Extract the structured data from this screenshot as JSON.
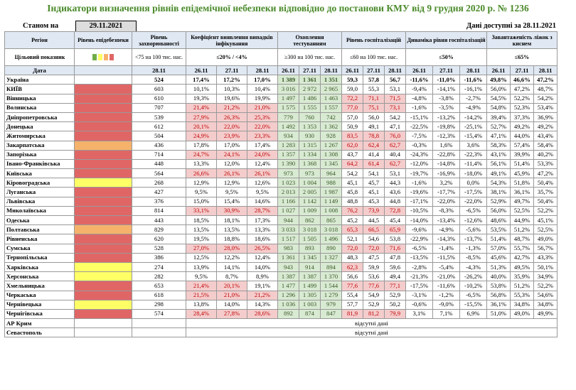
{
  "title": "Індикатори визначення рівнів епідемічної небезпеки відповідно до постанови КМУ від 9 грудня 2020 р. № 1236",
  "as_of_label": "Станом на",
  "as_of_date": "29.11.2021",
  "data_available": "Дані доступні за 28.11.2021",
  "headers": {
    "region": "Регіон",
    "level": "Рівень епідебезпеки",
    "incidence": "Рівень захворюваності",
    "detection": "Коефіцієнт виявлення випадків інфікування",
    "testing": "Охоплення тестуванням",
    "hosp": "Рівень госпіталізацій",
    "hosp_dyn": "Динаміка рівня госпіталізацій",
    "oxygen": "Завантаженість ліжок з киснем"
  },
  "targets": {
    "label": "Цільовий показник",
    "incidence": "<75 на 100 тис. нас.",
    "detection": "≤20% / <4%",
    "testing": "≥300 на 100 тис. нас.",
    "hosp": "≤60 на 100 тис. нас.",
    "hosp_dyn": "≤50%",
    "oxygen": "≤65%"
  },
  "date_label": "Дата",
  "dates": {
    "single": "28.11",
    "triple": [
      "26.11",
      "27.11",
      "28.11"
    ]
  },
  "colors": {
    "red": "#e06666",
    "orange": "#f6b26b",
    "yellow": "#ffff66",
    "green": "#70ad47"
  },
  "rows": [
    {
      "name": "Україна",
      "level": "",
      "inc": "524",
      "det": [
        "17,4%",
        "17,2%",
        "17,0%"
      ],
      "test": [
        "1 389",
        "1 361",
        "1 351"
      ],
      "hosp": [
        "59,3",
        "57,8",
        "56,7"
      ],
      "dyn": [
        "-11,6%",
        "-11,0%",
        "-11,6%"
      ],
      "oxy": [
        "49,8%",
        "46,6%",
        "47,2%"
      ]
    },
    {
      "name": "КИЇВ",
      "level": "red",
      "inc": "603",
      "det": [
        "10,1%",
        "10,3%",
        "10,4%"
      ],
      "test": [
        "3 016",
        "2 972",
        "2 965"
      ],
      "hosp": [
        "59,0",
        "55,3",
        "53,1"
      ],
      "dyn": [
        "-9,4%",
        "-14,1%",
        "-16,1%"
      ],
      "oxy": [
        "56,0%",
        "47,2%",
        "48,7%"
      ]
    },
    {
      "name": "Вінницька",
      "level": "red",
      "inc": "610",
      "det": [
        "19,3%",
        "19,6%",
        "19,9%"
      ],
      "test": [
        "1 497",
        "1 486",
        "1 463"
      ],
      "hosp": [
        "72,2",
        "71,1",
        "71,5"
      ],
      "dyn": [
        "-4,8%",
        "-3,8%",
        "-2,7%"
      ],
      "oxy": [
        "54,5%",
        "52,2%",
        "54,2%"
      ]
    },
    {
      "name": "Волинська",
      "level": "red",
      "inc": "707",
      "det": [
        "21,4%",
        "21,2%",
        "21,0%"
      ],
      "test": [
        "1 575",
        "1 555",
        "1 557"
      ],
      "hosp": [
        "77,0",
        "75,1",
        "73,1"
      ],
      "dyn": [
        "-1,6%",
        "-3,5%",
        "-4,9%"
      ],
      "oxy": [
        "54,8%",
        "52,3%",
        "53,4%"
      ]
    },
    {
      "name": "Дніпропетровська",
      "level": "red",
      "inc": "539",
      "det": [
        "27,9%",
        "26,3%",
        "25,3%"
      ],
      "test": [
        "779",
        "760",
        "742"
      ],
      "hosp": [
        "57,0",
        "56,0",
        "54,2"
      ],
      "dyn": [
        "-15,1%",
        "-13,2%",
        "-14,2%"
      ],
      "oxy": [
        "39,4%",
        "37,3%",
        "36,9%"
      ]
    },
    {
      "name": "Донецька",
      "level": "red",
      "inc": "612",
      "det": [
        "20,1%",
        "22,0%",
        "22,0%"
      ],
      "test": [
        "1 492",
        "1 353",
        "1 362"
      ],
      "hosp": [
        "50,9",
        "49,1",
        "47,1"
      ],
      "dyn": [
        "-22,5%",
        "-19,8%",
        "-25,1%"
      ],
      "oxy": [
        "52,7%",
        "49,2%",
        "49,2%"
      ]
    },
    {
      "name": "Житомирська",
      "level": "red",
      "inc": "504",
      "det": [
        "24,9%",
        "23,9%",
        "23,3%"
      ],
      "test": [
        "934",
        "930",
        "928"
      ],
      "hosp": [
        "83,5",
        "78,8",
        "76,0"
      ],
      "dyn": [
        "-7,5%",
        "-12,3%",
        "-15,4%"
      ],
      "oxy": [
        "47,1%",
        "44,0%",
        "43,4%"
      ]
    },
    {
      "name": "Закарпатська",
      "level": "orange",
      "inc": "436",
      "det": [
        "17,8%",
        "17,0%",
        "17,4%"
      ],
      "test": [
        "1 283",
        "1 315",
        "1 267"
      ],
      "hosp": [
        "62,0",
        "62,4",
        "62,7"
      ],
      "dyn": [
        "-0,3%",
        "1,6%",
        "3,6%"
      ],
      "oxy": [
        "58,3%",
        "57,4%",
        "58,4%"
      ]
    },
    {
      "name": "Запорізька",
      "level": "red",
      "inc": "714",
      "det": [
        "24,7%",
        "24,1%",
        "24,0%"
      ],
      "test": [
        "1 357",
        "1 334",
        "1 308"
      ],
      "hosp": [
        "43,7",
        "41,4",
        "40,4"
      ],
      "dyn": [
        "-24,3%",
        "-22,8%",
        "-22,3%"
      ],
      "oxy": [
        "43,1%",
        "39,9%",
        "40,2%"
      ]
    },
    {
      "name": "Івано-Франківська",
      "level": "red",
      "inc": "448",
      "det": [
        "13,3%",
        "12,0%",
        "12,4%"
      ],
      "test": [
        "1 390",
        "1 368",
        "1 345"
      ],
      "hosp": [
        "64,2",
        "61,4",
        "62,7"
      ],
      "dyn": [
        "-12,0%",
        "-14,8%",
        "-11,4%"
      ],
      "oxy": [
        "56,1%",
        "51,4%",
        "53,3%"
      ]
    },
    {
      "name": "Київська",
      "level": "red",
      "inc": "564",
      "det": [
        "26,6%",
        "26,1%",
        "26,1%"
      ],
      "test": [
        "973",
        "973",
        "964"
      ],
      "hosp": [
        "54,2",
        "54,1",
        "53,1"
      ],
      "dyn": [
        "-19,7%",
        "-16,9%",
        "-18,0%"
      ],
      "oxy": [
        "49,1%",
        "45,9%",
        "47,2%"
      ]
    },
    {
      "name": "Кіровоградська",
      "level": "yellow",
      "inc": "268",
      "det": [
        "12,9%",
        "12,9%",
        "12,6%"
      ],
      "test": [
        "1 023",
        "1 004",
        "988"
      ],
      "hosp": [
        "45,1",
        "45,7",
        "44,3"
      ],
      "dyn": [
        "-1,6%",
        "3,2%",
        "0,0%"
      ],
      "oxy": [
        "54,3%",
        "51,8%",
        "50,4%"
      ]
    },
    {
      "name": "Луганська",
      "level": "red",
      "inc": "427",
      "det": [
        "9,5%",
        "9,5%",
        "9,5%"
      ],
      "test": [
        "2 013",
        "2 005",
        "1 987"
      ],
      "hosp": [
        "45,8",
        "45,1",
        "43,6"
      ],
      "dyn": [
        "-19,6%",
        "-17,7%",
        "-17,5%"
      ],
      "oxy": [
        "38,1%",
        "36,1%",
        "35,7%"
      ]
    },
    {
      "name": "Львівська",
      "level": "red",
      "inc": "376",
      "det": [
        "15,0%",
        "15,4%",
        "14,6%"
      ],
      "test": [
        "1 166",
        "1 142",
        "1 149"
      ],
      "hosp": [
        "48,8",
        "45,3",
        "44,8"
      ],
      "dyn": [
        "-17,1%",
        "-22,0%",
        "-22,0%"
      ],
      "oxy": [
        "52,9%",
        "49,7%",
        "50,4%"
      ]
    },
    {
      "name": "Миколаївська",
      "level": "red",
      "inc": "814",
      "det": [
        "33,1%",
        "30,9%",
        "28,7%"
      ],
      "test": [
        "1 027",
        "1 009",
        "1 008"
      ],
      "hosp": [
        "76,2",
        "73,9",
        "72,8"
      ],
      "dyn": [
        "-10,5%",
        "-8,3%",
        "-6,5%"
      ],
      "oxy": [
        "56,0%",
        "52,5%",
        "52,2%"
      ]
    },
    {
      "name": "Одеська",
      "level": "red",
      "inc": "443",
      "det": [
        "18,5%",
        "18,1%",
        "17,3%"
      ],
      "test": [
        "944",
        "862",
        "865"
      ],
      "hosp": [
        "45,2",
        "44,5",
        "45,4"
      ],
      "dyn": [
        "-14,0%",
        "-13,4%",
        "-12,6%"
      ],
      "oxy": [
        "48,6%",
        "44,9%",
        "45,1%"
      ]
    },
    {
      "name": "Полтавська",
      "level": "orange",
      "inc": "829",
      "det": [
        "13,5%",
        "13,5%",
        "13,3%"
      ],
      "test": [
        "3 033",
        "3 018",
        "3 018"
      ],
      "hosp": [
        "65,3",
        "66,5",
        "65,9"
      ],
      "dyn": [
        "-9,6%",
        "-4,9%",
        "-5,6%"
      ],
      "oxy": [
        "53,5%",
        "51,2%",
        "52,5%"
      ]
    },
    {
      "name": "Рівненська",
      "level": "red",
      "inc": "620",
      "det": [
        "19,5%",
        "18,8%",
        "18,6%"
      ],
      "test": [
        "1 517",
        "1 505",
        "1 496"
      ],
      "hosp": [
        "52,1",
        "54,6",
        "53,8"
      ],
      "dyn": [
        "-22,9%",
        "-14,3%",
        "-13,7%"
      ],
      "oxy": [
        "51,4%",
        "48,7%",
        "49,0%"
      ]
    },
    {
      "name": "Сумська",
      "level": "red",
      "inc": "528",
      "det": [
        "27,0%",
        "28,0%",
        "26,5%"
      ],
      "test": [
        "983",
        "893",
        "890"
      ],
      "hosp": [
        "72,0",
        "72,0",
        "71,6"
      ],
      "dyn": [
        "-6,5%",
        "-1,4%",
        "-1,3%"
      ],
      "oxy": [
        "57,0%",
        "55,7%",
        "56,7%"
      ]
    },
    {
      "name": "Тернопільська",
      "level": "red",
      "inc": "386",
      "det": [
        "12,5%",
        "12,2%",
        "12,4%"
      ],
      "test": [
        "1 361",
        "1 345",
        "1 327"
      ],
      "hosp": [
        "48,3",
        "47,5",
        "47,8"
      ],
      "dyn": [
        "-13,5%",
        "-11,5%",
        "-8,5%"
      ],
      "oxy": [
        "45,6%",
        "42,7%",
        "43,3%"
      ]
    },
    {
      "name": "Харківська",
      "level": "yellow",
      "inc": "274",
      "det": [
        "13,9%",
        "14,1%",
        "14,0%"
      ],
      "test": [
        "943",
        "914",
        "894"
      ],
      "hosp": [
        "62,3",
        "59,9",
        "59,6"
      ],
      "dyn": [
        "-2,8%",
        "-5,4%",
        "-4,3%"
      ],
      "oxy": [
        "51,3%",
        "49,5%",
        "50,1%"
      ]
    },
    {
      "name": "Херсонська",
      "level": "yellow",
      "inc": "282",
      "det": [
        "9,5%",
        "8,7%",
        "8,9%"
      ],
      "test": [
        "1 387",
        "1 387",
        "1 370"
      ],
      "hosp": [
        "56,6",
        "53,6",
        "49,4"
      ],
      "dyn": [
        "-21,3%",
        "-21,0%",
        "-26,2%"
      ],
      "oxy": [
        "40,0%",
        "35,9%",
        "34,9%"
      ]
    },
    {
      "name": "Хмельницька",
      "level": "red",
      "inc": "653",
      "det": [
        "21,4%",
        "20,1%",
        "19,1%"
      ],
      "test": [
        "1 477",
        "1 499",
        "1 544"
      ],
      "hosp": [
        "77,6",
        "77,6",
        "77,1"
      ],
      "dyn": [
        "-17,5%",
        "-11,6%",
        "-10,2%"
      ],
      "oxy": [
        "53,8%",
        "51,2%",
        "52,2%"
      ]
    },
    {
      "name": "Черкаська",
      "level": "red",
      "inc": "618",
      "det": [
        "21,5%",
        "21,0%",
        "21,2%"
      ],
      "test": [
        "1 296",
        "1 305",
        "1 279"
      ],
      "hosp": [
        "55,4",
        "54,9",
        "52,9"
      ],
      "dyn": [
        "-3,1%",
        "-1,2%",
        "-6,5%"
      ],
      "oxy": [
        "56,8%",
        "55,3%",
        "54,6%"
      ]
    },
    {
      "name": "Чернівецька",
      "level": "yellow",
      "inc": "298",
      "det": [
        "13,8%",
        "14,0%",
        "14,3%"
      ],
      "test": [
        "1 036",
        "1 003",
        "979"
      ],
      "hosp": [
        "57,7",
        "52,9",
        "50,2"
      ],
      "dyn": [
        "-0,6%",
        "-9,0%",
        "-15,5%"
      ],
      "oxy": [
        "36,1%",
        "34,8%",
        "34,8%"
      ]
    },
    {
      "name": "Чернігівська",
      "level": "red",
      "inc": "574",
      "det": [
        "28,4%",
        "27,8%",
        "28,6%"
      ],
      "test": [
        "892",
        "874",
        "847"
      ],
      "hosp": [
        "81,9",
        "81,2",
        "79,9"
      ],
      "dyn": [
        "3,1%",
        "7,1%",
        "6,9%"
      ],
      "oxy": [
        "51,0%",
        "49,0%",
        "49,9%"
      ]
    }
  ],
  "na_rows": [
    {
      "name": "АР Крим",
      "text": "відсутні дані"
    },
    {
      "name": "Севастополь",
      "text": "відсутні дані"
    }
  ],
  "bad_cells": {
    "det": [
      [
        3,
        0
      ],
      [
        3,
        1
      ],
      [
        3,
        2
      ],
      [
        4,
        0
      ],
      [
        4,
        1
      ],
      [
        4,
        2
      ],
      [
        5,
        0
      ],
      [
        5,
        1
      ],
      [
        5,
        2
      ],
      [
        6,
        0
      ],
      [
        6,
        1
      ],
      [
        6,
        2
      ],
      [
        8,
        0
      ],
      [
        8,
        1
      ],
      [
        8,
        2
      ],
      [
        10,
        0
      ],
      [
        10,
        1
      ],
      [
        10,
        2
      ],
      [
        14,
        0
      ],
      [
        14,
        1
      ],
      [
        14,
        2
      ],
      [
        18,
        0
      ],
      [
        18,
        1
      ],
      [
        18,
        2
      ],
      [
        22,
        0
      ],
      [
        22,
        1
      ],
      [
        23,
        0
      ],
      [
        23,
        1
      ],
      [
        23,
        2
      ],
      [
        25,
        0
      ],
      [
        25,
        1
      ],
      [
        25,
        2
      ]
    ],
    "hosp": [
      [
        2,
        0
      ],
      [
        2,
        1
      ],
      [
        2,
        2
      ],
      [
        3,
        0
      ],
      [
        3,
        1
      ],
      [
        3,
        2
      ],
      [
        6,
        0
      ],
      [
        6,
        1
      ],
      [
        6,
        2
      ],
      [
        7,
        0
      ],
      [
        7,
        1
      ],
      [
        7,
        2
      ],
      [
        9,
        0
      ],
      [
        9,
        1
      ],
      [
        9,
        2
      ],
      [
        14,
        0
      ],
      [
        14,
        1
      ],
      [
        14,
        2
      ],
      [
        16,
        0
      ],
      [
        16,
        1
      ],
      [
        16,
        2
      ],
      [
        18,
        0
      ],
      [
        18,
        1
      ],
      [
        18,
        2
      ],
      [
        20,
        0
      ],
      [
        22,
        0
      ],
      [
        22,
        1
      ],
      [
        22,
        2
      ],
      [
        25,
        0
      ],
      [
        25,
        1
      ],
      [
        25,
        2
      ]
    ]
  }
}
